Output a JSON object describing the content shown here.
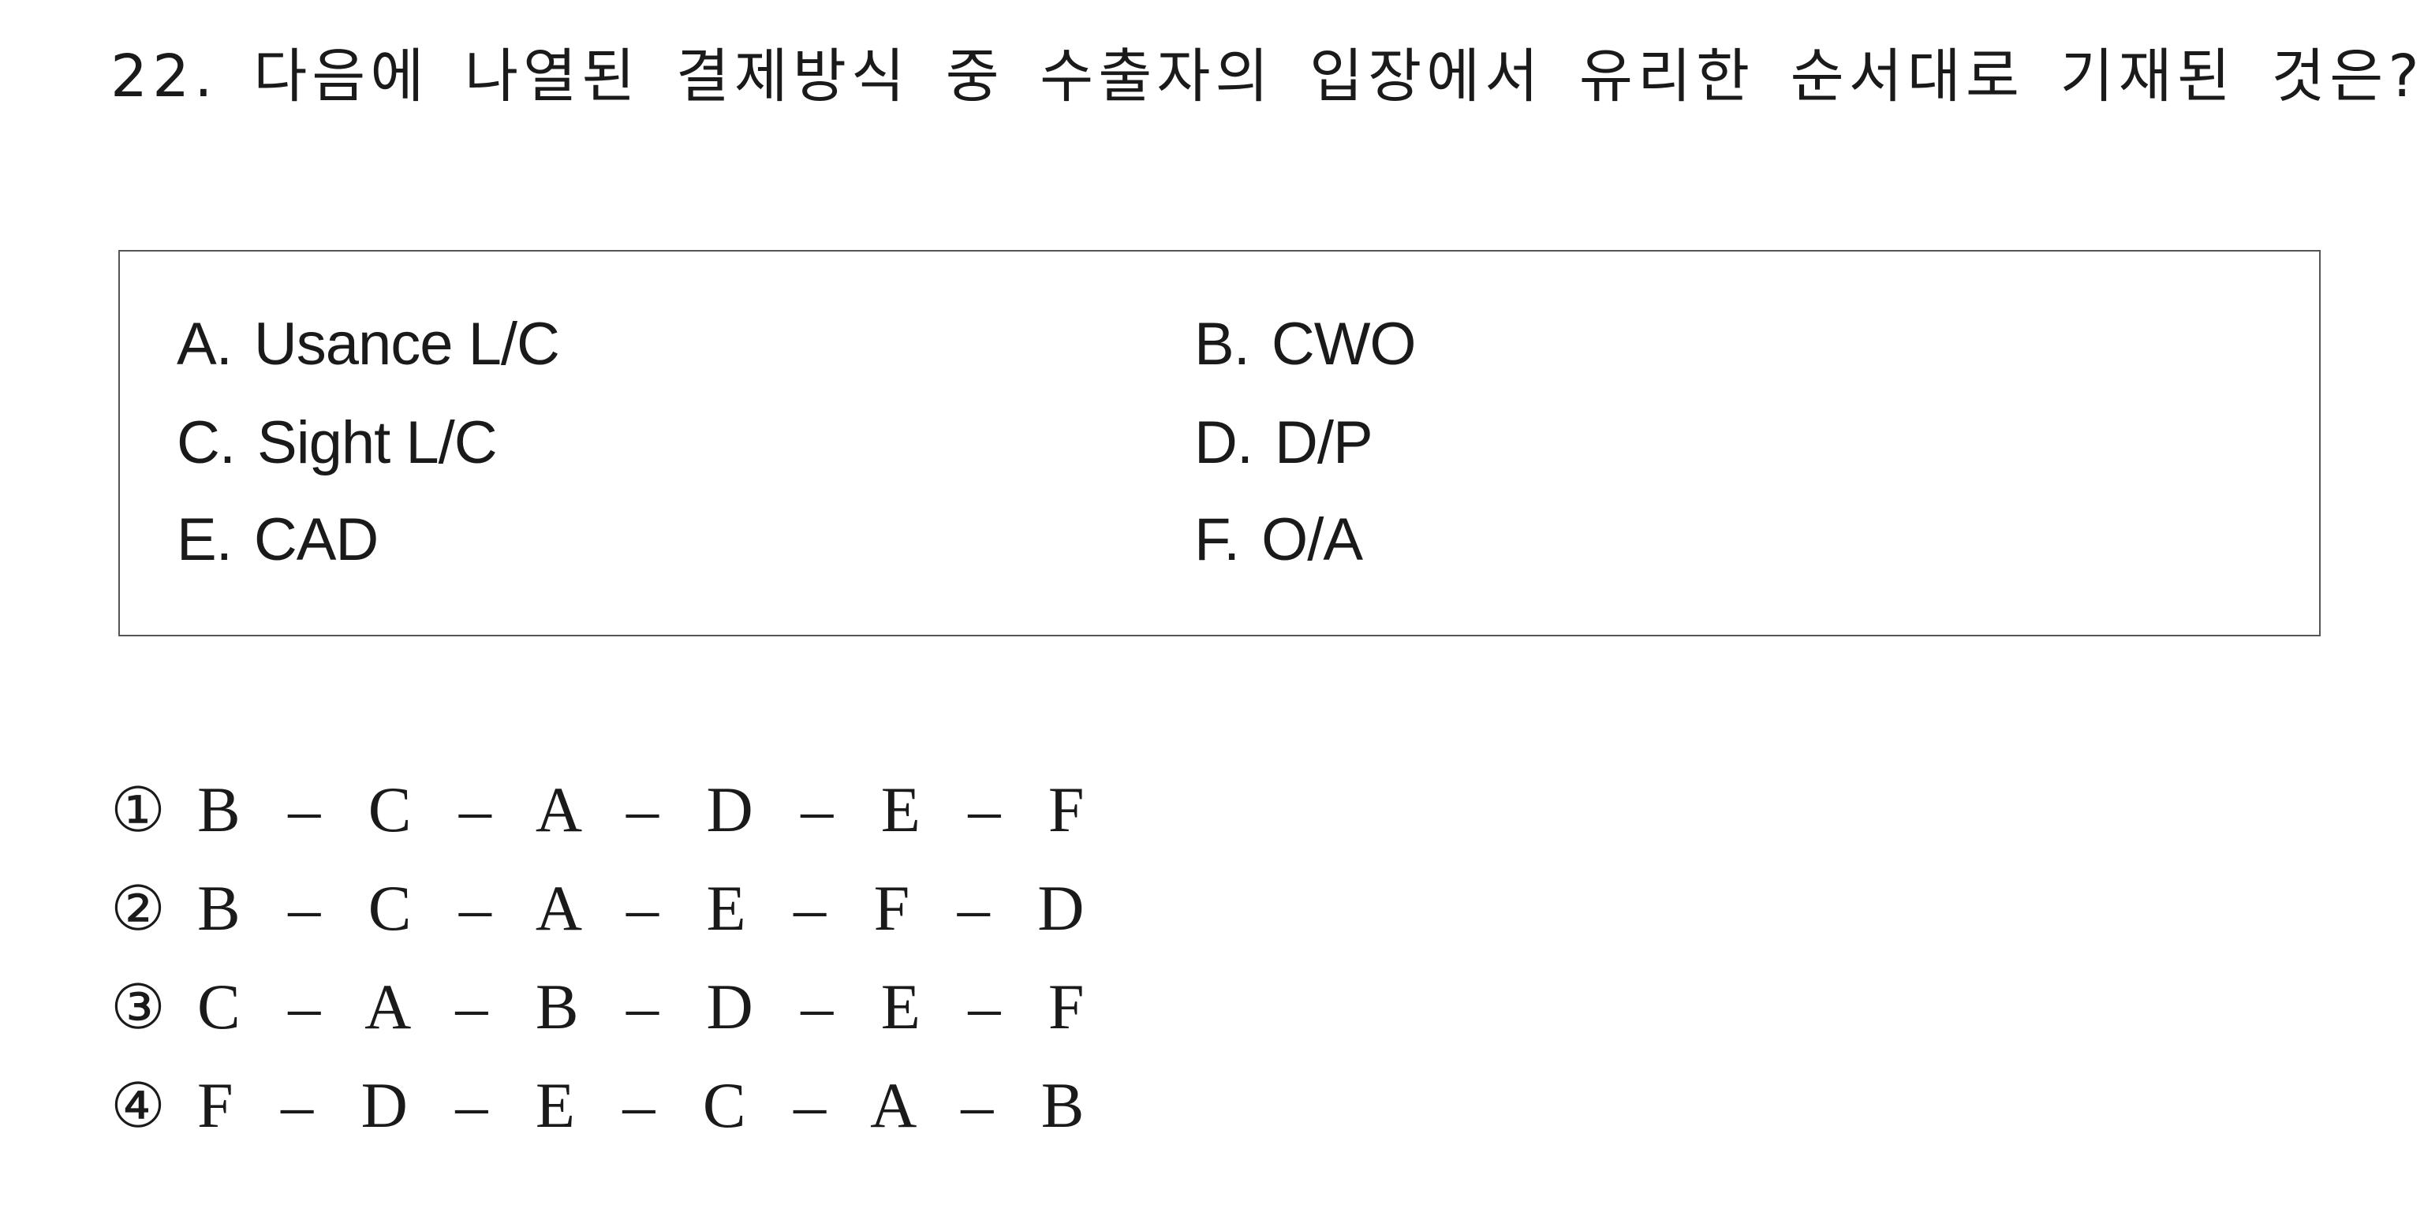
{
  "question": {
    "text": "22. 다음에 나열된 결제방식 중 수출자의 입장에서 유리한 순서대로 기재된 것은?"
  },
  "box": {
    "items": [
      {
        "key": "A.",
        "label": "Usance L/C"
      },
      {
        "key": "B.",
        "label": "CWO"
      },
      {
        "key": "C.",
        "label": "Sight L/C"
      },
      {
        "key": "D.",
        "label": "D/P"
      },
      {
        "key": "E.",
        "label": "CAD"
      },
      {
        "key": "F.",
        "label": "O/A"
      }
    ]
  },
  "choices": [
    {
      "num": "①",
      "sequence": "B – C – A – D – E – F"
    },
    {
      "num": "②",
      "sequence": "B – C – A – E – F – D"
    },
    {
      "num": "③",
      "sequence": "C – A – B – D – E – F"
    },
    {
      "num": "④",
      "sequence": "F – D – E – C – A – B"
    }
  ]
}
